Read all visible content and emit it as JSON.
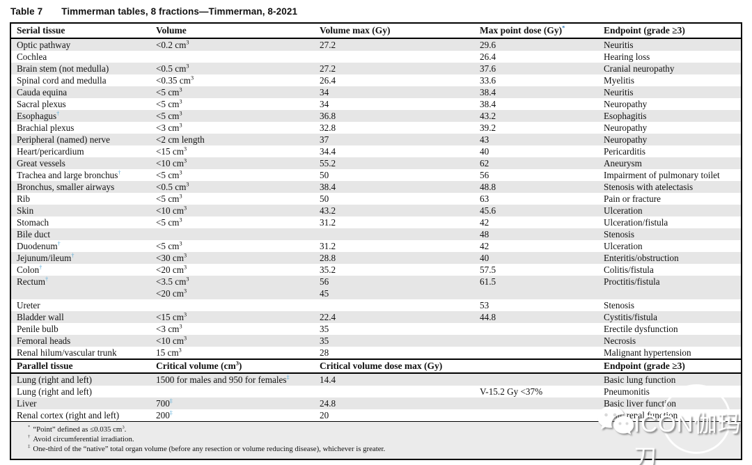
{
  "title": {
    "label": "Table 7",
    "text": "Timmerman tables, 8 fractions—Timmerman, 8-2021"
  },
  "colors": {
    "shaded_row": "#e6e6e6",
    "dagger": "#54a9d6",
    "asterisk": "#2878b8",
    "footnote_bg": "#ebebeb"
  },
  "table": {
    "serial_header": {
      "cols": [
        "Serial tissue",
        "Volume",
        "Volume max (Gy)",
        "Max point dose (Gy)",
        "Endpoint (grade ≥3)"
      ],
      "col4_marker": "*"
    },
    "serial_rows": [
      {
        "tissue": "Optic pathway",
        "marker": "",
        "volume": "<0.2 cm^3",
        "vmax": "27.2",
        "maxdose": "29.6",
        "endpoint": "Neuritis",
        "shaded": true
      },
      {
        "tissue": "Cochlea",
        "marker": "",
        "volume": "",
        "vmax": "",
        "maxdose": "26.4",
        "endpoint": "Hearing loss",
        "shaded": false
      },
      {
        "tissue": "Brain stem (not medulla)",
        "marker": "",
        "volume": "<0.5 cm^3",
        "vmax": "27.2",
        "maxdose": "37.6",
        "endpoint": "Cranial neuropathy",
        "shaded": true
      },
      {
        "tissue": "Spinal cord and medulla",
        "marker": "",
        "volume": "<0.35 cm^3",
        "vmax": "26.4",
        "maxdose": "33.6",
        "endpoint": "Myelitis",
        "shaded": false
      },
      {
        "tissue": "Cauda equina",
        "marker": "",
        "volume": "<5 cm^3",
        "vmax": "34",
        "maxdose": "38.4",
        "endpoint": "Neuritis",
        "shaded": true
      },
      {
        "tissue": "Sacral plexus",
        "marker": "",
        "volume": "<5 cm^3",
        "vmax": "34",
        "maxdose": "38.4",
        "endpoint": "Neuropathy",
        "shaded": false
      },
      {
        "tissue": "Esophagus",
        "marker": "†",
        "volume": "<5 cm^3",
        "vmax": "36.8",
        "maxdose": "43.2",
        "endpoint": "Esophagitis",
        "shaded": true
      },
      {
        "tissue": "Brachial plexus",
        "marker": "",
        "volume": "<3 cm^3",
        "vmax": "32.8",
        "maxdose": "39.2",
        "endpoint": "Neuropathy",
        "shaded": false
      },
      {
        "tissue": "Peripheral (named) nerve",
        "marker": "",
        "volume": "<2 cm length",
        "vmax": "37",
        "maxdose": "43",
        "endpoint": "Neuropathy",
        "shaded": true
      },
      {
        "tissue": "Heart/pericardium",
        "marker": "",
        "volume": "<15 cm^3",
        "vmax": "34.4",
        "maxdose": "40",
        "endpoint": "Pericarditis",
        "shaded": false
      },
      {
        "tissue": "Great vessels",
        "marker": "",
        "volume": "<10 cm^3",
        "vmax": "55.2",
        "maxdose": "62",
        "endpoint": "Aneurysm",
        "shaded": true
      },
      {
        "tissue": "Trachea and large bronchus",
        "marker": "†",
        "volume": "<5 cm^3",
        "vmax": "50",
        "maxdose": "56",
        "endpoint": "Impairment of pulmonary toilet",
        "shaded": false
      },
      {
        "tissue": "Bronchus, smaller airways",
        "marker": "",
        "volume": "<0.5 cm^3",
        "vmax": "38.4",
        "maxdose": "48.8",
        "endpoint": "Stenosis with atelectasis",
        "shaded": true
      },
      {
        "tissue": "Rib",
        "marker": "",
        "volume": "<5 cm^3",
        "vmax": "50",
        "maxdose": "63",
        "endpoint": "Pain or fracture",
        "shaded": false
      },
      {
        "tissue": "Skin",
        "marker": "",
        "volume": "<10 cm^3",
        "vmax": "43.2",
        "maxdose": "45.6",
        "endpoint": "Ulceration",
        "shaded": true
      },
      {
        "tissue": "Stomach",
        "marker": "",
        "volume": "<5 cm^3",
        "vmax": "31.2",
        "maxdose": "42",
        "endpoint": "Ulceration/fistula",
        "shaded": false
      },
      {
        "tissue": "Bile duct",
        "marker": "",
        "volume": "",
        "vmax": "",
        "maxdose": "48",
        "endpoint": "Stenosis",
        "shaded": true
      },
      {
        "tissue": "Duodenum",
        "marker": "†",
        "volume": "<5 cm^3",
        "vmax": "31.2",
        "maxdose": "42",
        "endpoint": "Ulceration",
        "shaded": false
      },
      {
        "tissue": "Jejunum/ileum",
        "marker": "†",
        "volume": "<30 cm^3",
        "vmax": "28.8",
        "maxdose": "40",
        "endpoint": "Enteritis/obstruction",
        "shaded": true
      },
      {
        "tissue": "Colon",
        "marker": "†",
        "volume": "<20 cm^3",
        "vmax": "35.2",
        "maxdose": "57.5",
        "endpoint": "Colitis/fistula",
        "shaded": false
      },
      {
        "tissue": "Rectum",
        "marker": "†",
        "volume": "<3.5 cm^3",
        "vmax": "56",
        "maxdose": "61.5",
        "endpoint": "Proctitis/fistula",
        "shaded": true
      },
      {
        "tissue": "",
        "marker": "",
        "volume": "<20 cm^3",
        "vmax": "45",
        "maxdose": "",
        "endpoint": "",
        "shaded": true
      },
      {
        "tissue": "Ureter",
        "marker": "",
        "volume": "",
        "vmax": "",
        "maxdose": "53",
        "endpoint": "Stenosis",
        "shaded": false
      },
      {
        "tissue": "Bladder wall",
        "marker": "",
        "volume": "<15 cm^3",
        "vmax": "22.4",
        "maxdose": "44.8",
        "endpoint": "Cystitis/fistula",
        "shaded": true
      },
      {
        "tissue": "Penile bulb",
        "marker": "",
        "volume": "<3 cm^3",
        "vmax": "35",
        "maxdose": "",
        "endpoint": "Erectile dysfunction",
        "shaded": false
      },
      {
        "tissue": "Femoral heads",
        "marker": "",
        "volume": "<10 cm^3",
        "vmax": "35",
        "maxdose": "",
        "endpoint": "Necrosis",
        "shaded": true
      },
      {
        "tissue": "Renal hilum/vascular trunk",
        "marker": "",
        "volume": "15 cm^3",
        "vmax": "28",
        "maxdose": "",
        "endpoint": "Malignant hypertension",
        "shaded": false
      }
    ],
    "parallel_header": {
      "cols": [
        "Parallel tissue",
        "Critical volume (cm^3)",
        "Critical volume dose max (Gy)",
        "",
        "Endpoint (grade ≥3)"
      ]
    },
    "parallel_rows": [
      {
        "tissue": "Lung (right and left)",
        "marker": "",
        "volume": "1500 for males and 950 for females",
        "volume_marker": "‡",
        "vmax": "14.4",
        "maxdose": "",
        "endpoint": "Basic lung function",
        "shaded": true
      },
      {
        "tissue": "Lung (right and left)",
        "marker": "",
        "volume": "",
        "volume_marker": "",
        "vmax": "",
        "maxdose": "V-15.2 Gy <37%",
        "endpoint": "Pneumonitis",
        "shaded": false
      },
      {
        "tissue": "Liver",
        "marker": "",
        "volume": "700",
        "volume_marker": "‡",
        "vmax": "24.8",
        "maxdose": "",
        "endpoint": "Basic liver function",
        "shaded": true
      },
      {
        "tissue": "Renal cortex (right and left)",
        "marker": "",
        "volume": "200",
        "volume_marker": "‡",
        "vmax": "20",
        "maxdose": "",
        "endpoint": "Basic renal function",
        "shaded": false
      }
    ],
    "footnotes": [
      {
        "marker": "*",
        "text": "“Point” defined as ≤0.035 cm^3."
      },
      {
        "marker": "†",
        "text": "Avoid circumferential irradiation."
      },
      {
        "marker": "‡",
        "text": "One-third of the “native” total organ volume (before any resection or volume reducing disease), whichever is greater."
      }
    ]
  },
  "watermark": {
    "text": "ICON伽玛刀",
    "icon": "wechat-icon"
  }
}
